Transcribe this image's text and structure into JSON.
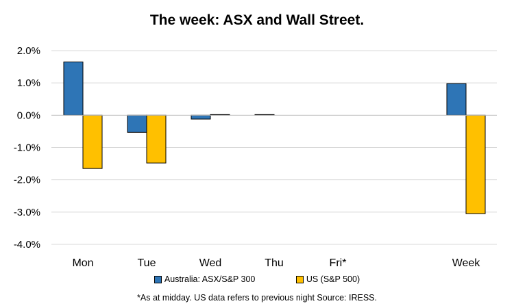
{
  "chart_data": {
    "type": "bar",
    "title": "The week:  ASX and Wall Street.",
    "categories": [
      "Mon",
      "Tue",
      "Wed",
      "Thu",
      "Fri*",
      "Week"
    ],
    "series": [
      {
        "name": "Australia: ASX/S&P 300",
        "color": "#2E75B6",
        "values": [
          1.65,
          -0.53,
          -0.12,
          0.02,
          null,
          0.98
        ]
      },
      {
        "name": "US (S&P 500)",
        "color": "#FFC000",
        "values": [
          -1.65,
          -1.48,
          0.02,
          null,
          null,
          -3.05
        ]
      }
    ],
    "ylim": [
      -4.0,
      2.0
    ],
    "yticks": [
      2.0,
      1.0,
      0.0,
      -1.0,
      -2.0,
      -3.0,
      -4.0
    ],
    "ytick_labels": [
      "2.0%",
      "1.0%",
      "0.0%",
      "-1.0%",
      "-2.0%",
      "-3.0%",
      "-4.0%"
    ],
    "xlabel": "",
    "ylabel": "",
    "grid": true,
    "legend_position": "bottom"
  },
  "footnote": "*As at midday. US data refers to previous night  Source:  IRESS."
}
